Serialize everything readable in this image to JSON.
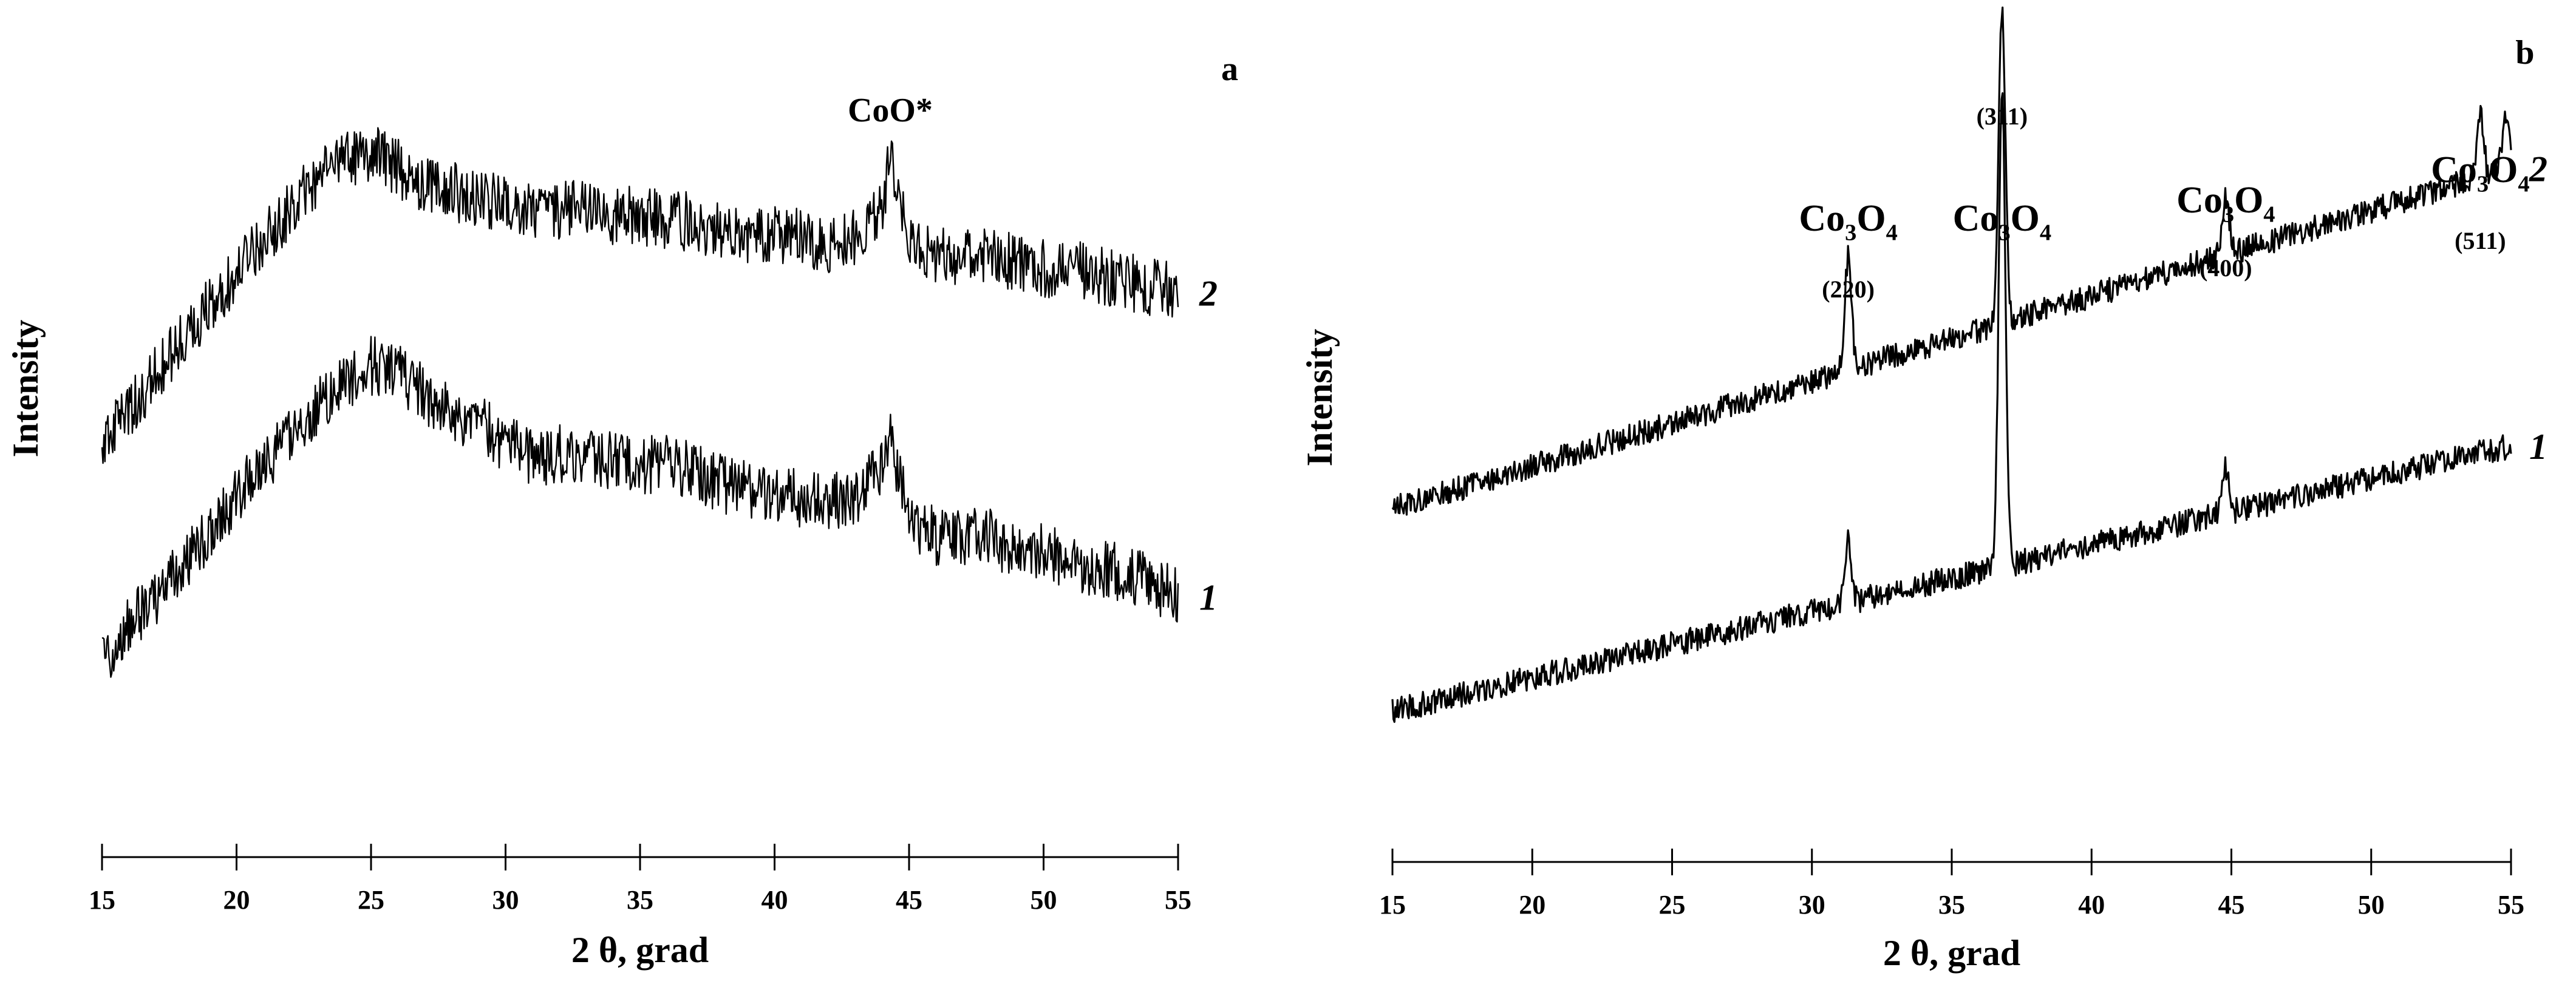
{
  "chart_data": [
    {
      "panel_label": "a",
      "type": "line",
      "xlabel": "2 θ,   grad",
      "ylabel": "Intensity",
      "xlim": [
        15,
        55
      ],
      "xticks": [
        15,
        20,
        25,
        30,
        35,
        40,
        45,
        50,
        55
      ],
      "y_ticks_shown": false,
      "grid": false,
      "series": [
        {
          "name": "1",
          "x": [
            15,
            16,
            17,
            18,
            19,
            20,
            21,
            22,
            23,
            24,
            25,
            26,
            27,
            28,
            29,
            30,
            31,
            32,
            33,
            34,
            35,
            36,
            37,
            38,
            39,
            40,
            41,
            42,
            43,
            44,
            44.3,
            45,
            46,
            47,
            48,
            49,
            50,
            51,
            52,
            53,
            54,
            55
          ],
          "values": [
            0.19,
            0.25,
            0.3,
            0.35,
            0.41,
            0.47,
            0.52,
            0.57,
            0.62,
            0.66,
            0.69,
            0.68,
            0.64,
            0.61,
            0.59,
            0.56,
            0.53,
            0.54,
            0.54,
            0.53,
            0.52,
            0.53,
            0.51,
            0.49,
            0.48,
            0.48,
            0.46,
            0.46,
            0.47,
            0.52,
            0.57,
            0.43,
            0.4,
            0.4,
            0.4,
            0.37,
            0.38,
            0.35,
            0.35,
            0.34,
            0.32,
            0.3
          ],
          "noise": 0.05
        },
        {
          "name": "2",
          "x": [
            15,
            16,
            17,
            18,
            19,
            20,
            21,
            22,
            23,
            24,
            25,
            26,
            27,
            28,
            29,
            30,
            31,
            32,
            33,
            34,
            35,
            36,
            37,
            38,
            39,
            40,
            41,
            42,
            43,
            44,
            44.3,
            45,
            46,
            47,
            48,
            49,
            50,
            51,
            52,
            53,
            54,
            55
          ],
          "values": [
            0.4,
            0.46,
            0.52,
            0.58,
            0.64,
            0.69,
            0.75,
            0.8,
            0.85,
            0.88,
            0.9,
            0.87,
            0.84,
            0.83,
            0.82,
            0.81,
            0.8,
            0.8,
            0.8,
            0.79,
            0.79,
            0.78,
            0.78,
            0.76,
            0.75,
            0.76,
            0.75,
            0.74,
            0.75,
            0.8,
            0.9,
            0.74,
            0.72,
            0.72,
            0.72,
            0.71,
            0.7,
            0.7,
            0.69,
            0.68,
            0.67,
            0.66
          ],
          "noise": 0.05
        }
      ],
      "annotations": [
        {
          "text": "CoO*",
          "x": 44.3
        }
      ]
    },
    {
      "panel_label": "b",
      "type": "line",
      "xlabel": "2 θ,   grad",
      "ylabel": "Intensity",
      "xlim": [
        15,
        55
      ],
      "xticks": [
        15,
        20,
        25,
        30,
        35,
        40,
        45,
        50,
        55
      ],
      "y_ticks_shown": false,
      "grid": false,
      "series": [
        {
          "name": "1",
          "x": [
            15,
            55
          ],
          "values": [
            0.1,
            0.52
          ],
          "noise": 0.02,
          "peaks": [
            {
              "x": 31.3,
              "height": 0.1
            },
            {
              "x": 36.8,
              "height": 0.75
            },
            {
              "x": 44.8,
              "height": 0.07
            }
          ]
        },
        {
          "name": "2",
          "x": [
            15,
            55
          ],
          "values": [
            0.42,
            0.96
          ],
          "noise": 0.02,
          "peaks": [
            {
              "x": 31.3,
              "height": 0.18
            },
            {
              "x": 36.8,
              "height": 0.5
            },
            {
              "x": 44.8,
              "height": 0.09
            },
            {
              "x": 53.9,
              "height": 0.1
            },
            {
              "x": 54.8,
              "height": 0.08
            }
          ]
        }
      ],
      "annotations": [
        {
          "formula": [
            "Co",
            "3",
            "O",
            "4"
          ],
          "hkl": "(220)",
          "x": 31.3
        },
        {
          "formula": [
            "Co",
            "3",
            "O",
            "4"
          ],
          "hkl": "(311)",
          "x": 36.8
        },
        {
          "formula": [
            "Co",
            "3",
            "O",
            "4"
          ],
          "hkl": "(400)",
          "x": 44.8
        },
        {
          "formula": [
            "Co",
            "3",
            "O",
            "4"
          ],
          "hkl": "(511)",
          "x": 53.9
        }
      ]
    }
  ]
}
